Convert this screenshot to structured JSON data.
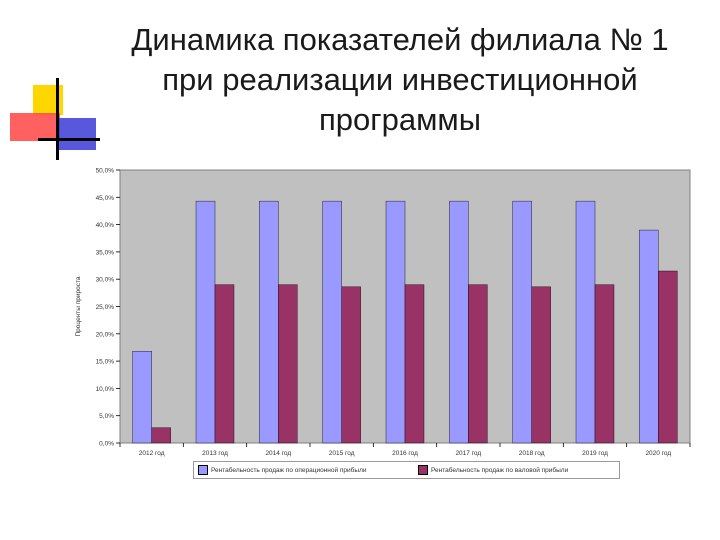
{
  "slide": {
    "title_lines": [
      "Динамика показателей филиала № 1",
      "при реализации инвестиционной",
      "программы"
    ]
  },
  "decoration": {
    "icon": "office-theme-squares",
    "colors": [
      "#ffd700",
      "#ff4f4f",
      "#3b3bd6",
      "#000000"
    ]
  },
  "chart_data": {
    "type": "bar",
    "ylabel": "Проценты прироста",
    "xlabel": "",
    "ylim": [
      0,
      50
    ],
    "ytick_step": 5,
    "ytick_labels": [
      "0,0%",
      "5,0%",
      "10,0%",
      "15,0%",
      "20,0%",
      "25,0%",
      "30,0%",
      "35,0%",
      "40,0%",
      "45,0%",
      "50,0%"
    ],
    "categories": [
      "2012 год",
      "2013 год",
      "2014 год",
      "2015 год",
      "2016 год",
      "2017 год",
      "2018 год",
      "2019 год",
      "2020 год"
    ],
    "series": [
      {
        "name": "Рентабельность продаж по операционной прибыли",
        "color": "#9999ff",
        "values": [
          16.8,
          44.3,
          44.3,
          44.3,
          44.3,
          44.3,
          44.3,
          44.3,
          39.0
        ]
      },
      {
        "name": "Рентабельность продаж по валовой прибыли",
        "color": "#993366",
        "values": [
          2.8,
          29.0,
          29.0,
          28.6,
          29.0,
          29.0,
          28.6,
          29.0,
          31.5
        ]
      }
    ],
    "plot_background": "#c0c0c0",
    "grid": false,
    "legend": "bottom"
  }
}
